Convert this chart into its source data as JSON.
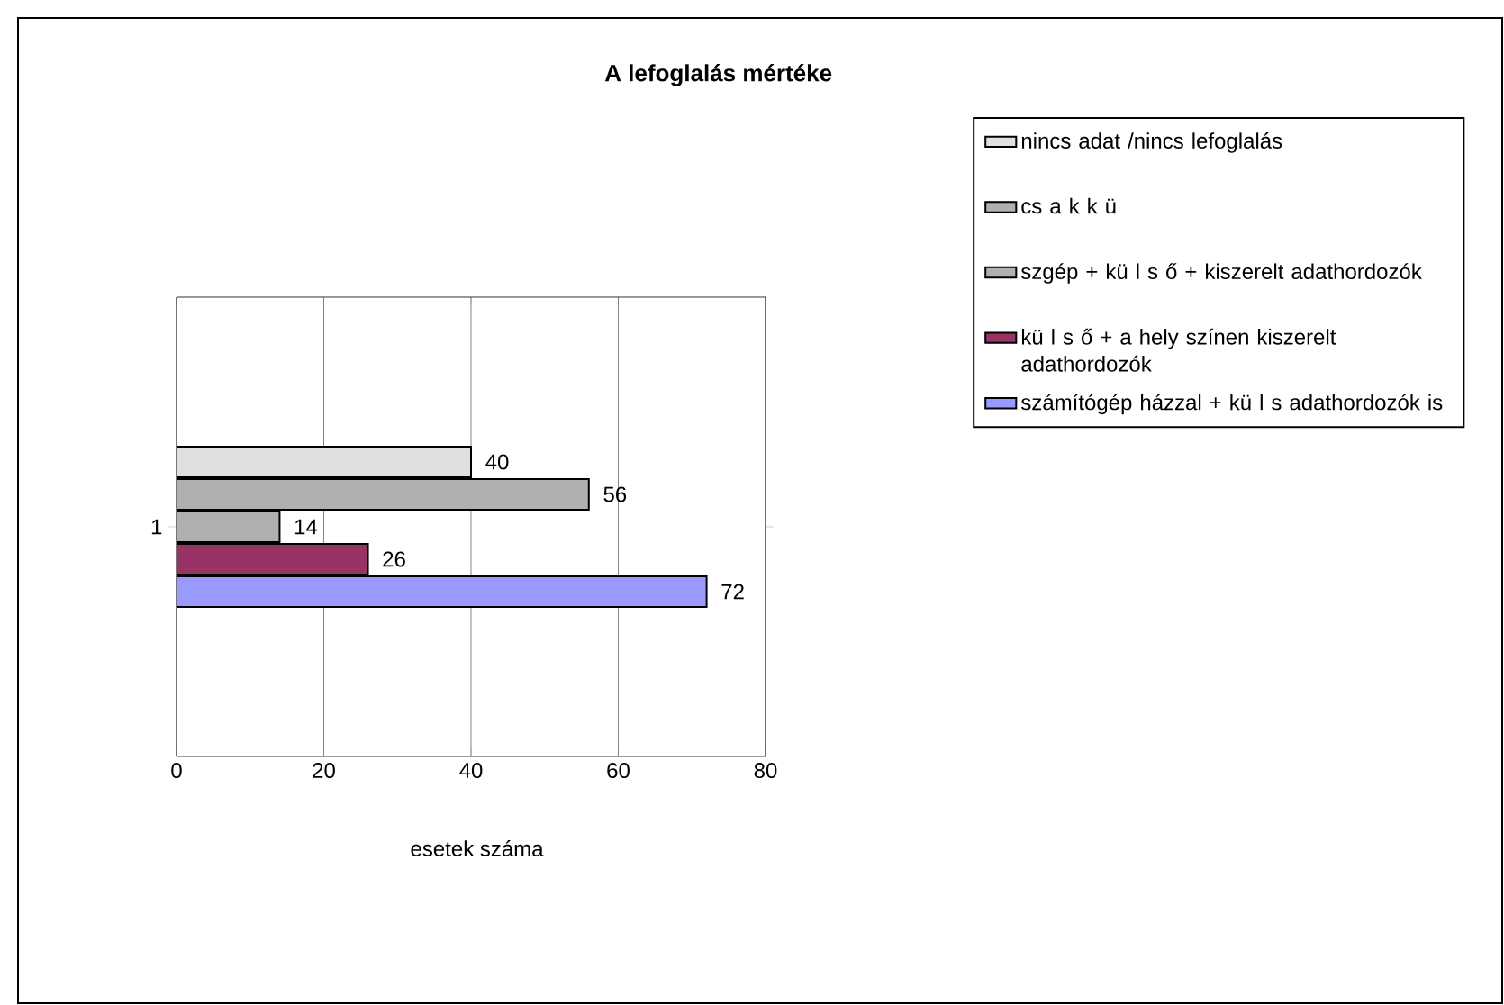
{
  "chart_data": {
    "type": "bar",
    "orientation": "horizontal",
    "title": "A lefoglalás mértéke",
    "xlabel": "esetek száma",
    "categories": [
      "1"
    ],
    "series": [
      {
        "name": "nincs adat /nincs lefoglalás",
        "color": "#e0e0e0",
        "values": [
          40
        ]
      },
      {
        "name": "cs a k k ü",
        "color": "#b0b0b0",
        "values": [
          56
        ]
      },
      {
        "name": "szgép + kü l s ő + kiszerelt adathordozók",
        "color": "#b0b0b0",
        "values": [
          14
        ]
      },
      {
        "name": "kü l s ő + a hely színen kiszerelt adathordozók",
        "color": "#993366",
        "values": [
          26
        ]
      },
      {
        "name": "számítógép házzal + kü l s adathordozók is",
        "color": "#9999ff",
        "values": [
          72
        ]
      }
    ],
    "xlim": [
      0,
      80
    ],
    "xticks": [
      0,
      20,
      40,
      60,
      80
    ],
    "grid": "x",
    "legend": "right",
    "data_labels": true
  }
}
